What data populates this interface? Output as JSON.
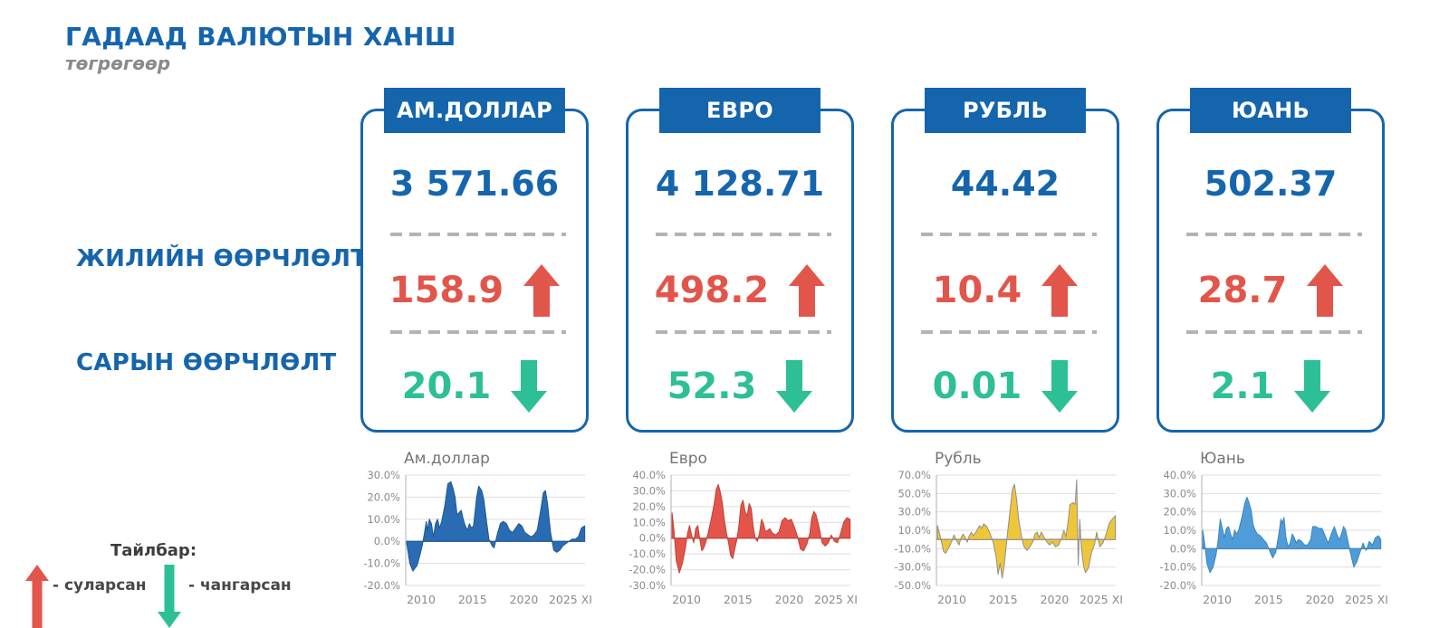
{
  "page": {
    "title": "ГАДААД ВАЛЮТЫН ХАНШ",
    "subtitle": "төгрөгөөр"
  },
  "row_labels": {
    "yearly": "ЖИЛИЙН ӨӨРЧЛӨЛТ",
    "monthly": "САРЫН ӨӨРЧЛӨЛТ"
  },
  "legend": {
    "title": "Тайлбар:",
    "weakened": "- суларсан",
    "strengthened": "- чангарсан"
  },
  "colors": {
    "blue": "#1565ad",
    "red": "#e2554b",
    "green": "#2dbf96",
    "dash_gray": "#b3b3b3"
  },
  "cards": [
    {
      "title": "АМ.ДОЛЛАР",
      "rate": "3 571.66",
      "yearly_change": "158.9",
      "monthly_change": "20.1"
    },
    {
      "title": "ЕВРО",
      "rate": "4 128.71",
      "yearly_change": "498.2",
      "monthly_change": "52.3"
    },
    {
      "title": "РУБЛЬ",
      "rate": "44.42",
      "yearly_change": "10.4",
      "monthly_change": "0.01"
    },
    {
      "title": "ЮАНЬ",
      "rate": "502.37",
      "yearly_change": "28.7",
      "monthly_change": "2.1"
    }
  ],
  "chart_data": [
    {
      "type": "area",
      "title": "Ам.доллар",
      "color": "#2a6cb3",
      "stroke": "#1d578f",
      "ylabel_format": "percent",
      "ylim": [
        -20,
        30
      ],
      "yticks": [
        30,
        20,
        10,
        0,
        -10,
        -20
      ],
      "xlim": [
        2008.5,
        2025.95
      ],
      "xticks": [
        {
          "v": 2010,
          "label": "2010"
        },
        {
          "v": 2015,
          "label": "2015"
        },
        {
          "v": 2020,
          "label": "2020"
        },
        {
          "v": 2025,
          "label": "2025 XI"
        }
      ],
      "points": [
        [
          2008.6,
          -1
        ],
        [
          2008.9,
          -10
        ],
        [
          2009.2,
          -13.5
        ],
        [
          2009.6,
          -11
        ],
        [
          2009.9,
          -6
        ],
        [
          2010.1,
          -2
        ],
        [
          2010.3,
          3
        ],
        [
          2010.5,
          9
        ],
        [
          2010.6,
          5
        ],
        [
          2010.8,
          10
        ],
        [
          2011.0,
          8
        ],
        [
          2011.2,
          2
        ],
        [
          2011.4,
          8
        ],
        [
          2011.6,
          10
        ],
        [
          2011.8,
          6
        ],
        [
          2012.0,
          9
        ],
        [
          2012.3,
          16
        ],
        [
          2012.6,
          26
        ],
        [
          2012.9,
          27
        ],
        [
          2013.1,
          24
        ],
        [
          2013.3,
          20
        ],
        [
          2013.5,
          12
        ],
        [
          2013.7,
          13
        ],
        [
          2013.9,
          14
        ],
        [
          2014.1,
          10
        ],
        [
          2014.3,
          7
        ],
        [
          2014.5,
          5
        ],
        [
          2014.7,
          8
        ],
        [
          2014.9,
          6
        ],
        [
          2015.1,
          7
        ],
        [
          2015.4,
          20
        ],
        [
          2015.6,
          25
        ],
        [
          2015.9,
          23
        ],
        [
          2016.1,
          19
        ],
        [
          2016.4,
          8
        ],
        [
          2016.6,
          1
        ],
        [
          2016.9,
          -2
        ],
        [
          2017.1,
          -3
        ],
        [
          2017.4,
          3
        ],
        [
          2017.7,
          8
        ],
        [
          2018.0,
          9
        ],
        [
          2018.3,
          8
        ],
        [
          2018.6,
          5
        ],
        [
          2018.9,
          4
        ],
        [
          2019.2,
          6
        ],
        [
          2019.5,
          8
        ],
        [
          2019.8,
          7
        ],
        [
          2020.1,
          4
        ],
        [
          2020.4,
          3
        ],
        [
          2020.7,
          2
        ],
        [
          2021.0,
          3
        ],
        [
          2021.3,
          5
        ],
        [
          2021.6,
          13
        ],
        [
          2021.9,
          22
        ],
        [
          2022.1,
          23
        ],
        [
          2022.3,
          17
        ],
        [
          2022.6,
          4
        ],
        [
          2022.9,
          -4
        ],
        [
          2023.2,
          -5
        ],
        [
          2023.5,
          -4
        ],
        [
          2023.8,
          -2
        ],
        [
          2024.1,
          -1
        ],
        [
          2024.4,
          0
        ],
        [
          2024.7,
          1
        ],
        [
          2025.0,
          1
        ],
        [
          2025.3,
          2
        ],
        [
          2025.6,
          6
        ],
        [
          2025.92,
          7
        ]
      ]
    },
    {
      "type": "area",
      "title": "Евро",
      "color": "#e3554b",
      "stroke": "#c04138",
      "ylabel_format": "percent",
      "ylim": [
        -30,
        40
      ],
      "yticks": [
        40,
        30,
        20,
        10,
        0,
        -10,
        -20,
        -30
      ],
      "xlim": [
        2008.5,
        2025.95
      ],
      "xticks": [
        {
          "v": 2010,
          "label": "2010"
        },
        {
          "v": 2015,
          "label": "2015"
        },
        {
          "v": 2020,
          "label": "2020"
        },
        {
          "v": 2025,
          "label": "2025 XI"
        }
      ],
      "points": [
        [
          2008.6,
          16
        ],
        [
          2008.8,
          4
        ],
        [
          2009.0,
          -14
        ],
        [
          2009.3,
          -22
        ],
        [
          2009.6,
          -16
        ],
        [
          2009.9,
          -6
        ],
        [
          2010.1,
          3
        ],
        [
          2010.3,
          8
        ],
        [
          2010.5,
          2
        ],
        [
          2010.7,
          -3
        ],
        [
          2010.9,
          6
        ],
        [
          2011.1,
          8
        ],
        [
          2011.3,
          -1
        ],
        [
          2011.5,
          -8
        ],
        [
          2011.7,
          -6
        ],
        [
          2011.9,
          -2
        ],
        [
          2012.1,
          3
        ],
        [
          2012.4,
          12
        ],
        [
          2012.7,
          22
        ],
        [
          2012.9,
          31
        ],
        [
          2013.1,
          34
        ],
        [
          2013.3,
          29
        ],
        [
          2013.5,
          22
        ],
        [
          2013.7,
          11
        ],
        [
          2013.9,
          3
        ],
        [
          2014.1,
          -3
        ],
        [
          2014.3,
          -11
        ],
        [
          2014.5,
          -13
        ],
        [
          2014.7,
          -7
        ],
        [
          2014.9,
          -1
        ],
        [
          2015.1,
          8
        ],
        [
          2015.3,
          21
        ],
        [
          2015.5,
          24
        ],
        [
          2015.7,
          17
        ],
        [
          2015.9,
          14
        ],
        [
          2016.1,
          22
        ],
        [
          2016.3,
          19
        ],
        [
          2016.5,
          7
        ],
        [
          2016.7,
          0
        ],
        [
          2016.9,
          -2
        ],
        [
          2017.1,
          3
        ],
        [
          2017.3,
          12
        ],
        [
          2017.5,
          9
        ],
        [
          2017.7,
          4
        ],
        [
          2017.9,
          5
        ],
        [
          2018.1,
          6
        ],
        [
          2018.4,
          3
        ],
        [
          2018.7,
          2
        ],
        [
          2019.0,
          4
        ],
        [
          2019.3,
          11
        ],
        [
          2019.6,
          13
        ],
        [
          2019.9,
          11
        ],
        [
          2020.2,
          12
        ],
        [
          2020.5,
          7
        ],
        [
          2020.8,
          1
        ],
        [
          2021.1,
          -7
        ],
        [
          2021.4,
          -8
        ],
        [
          2021.7,
          -4
        ],
        [
          2022.0,
          3
        ],
        [
          2022.2,
          13
        ],
        [
          2022.4,
          17
        ],
        [
          2022.6,
          15
        ],
        [
          2022.9,
          7
        ],
        [
          2023.2,
          -3
        ],
        [
          2023.5,
          -5
        ],
        [
          2023.8,
          -3
        ],
        [
          2024.1,
          2
        ],
        [
          2024.4,
          -2
        ],
        [
          2024.7,
          -3
        ],
        [
          2025.0,
          3
        ],
        [
          2025.3,
          10
        ],
        [
          2025.6,
          13
        ],
        [
          2025.92,
          12
        ]
      ]
    },
    {
      "type": "area",
      "title": "Рубль",
      "color": "#eec63a",
      "stroke": "#8f8f8f",
      "ylabel_format": "percent",
      "ylim": [
        -50,
        70
      ],
      "yticks": [
        70,
        50,
        30,
        10,
        -10,
        -30,
        -50
      ],
      "xlim": [
        2008.5,
        2025.95
      ],
      "xticks": [
        {
          "v": 2010,
          "label": "2010"
        },
        {
          "v": 2015,
          "label": "2015"
        },
        {
          "v": 2020,
          "label": "2020"
        },
        {
          "v": 2025,
          "label": "2025 XI"
        }
      ],
      "points": [
        [
          2008.6,
          15
        ],
        [
          2008.9,
          2
        ],
        [
          2009.2,
          -13
        ],
        [
          2009.4,
          -15
        ],
        [
          2009.7,
          -9
        ],
        [
          2010.0,
          -2
        ],
        [
          2010.2,
          5
        ],
        [
          2010.5,
          -2
        ],
        [
          2010.7,
          -6
        ],
        [
          2010.9,
          2
        ],
        [
          2011.1,
          6
        ],
        [
          2011.3,
          2
        ],
        [
          2011.5,
          -3
        ],
        [
          2011.7,
          4
        ],
        [
          2011.9,
          8
        ],
        [
          2012.1,
          4
        ],
        [
          2012.4,
          9
        ],
        [
          2012.7,
          15
        ],
        [
          2012.9,
          12
        ],
        [
          2013.1,
          17
        ],
        [
          2013.4,
          14
        ],
        [
          2013.7,
          7
        ],
        [
          2014.0,
          -2
        ],
        [
          2014.3,
          -18
        ],
        [
          2014.5,
          -38
        ],
        [
          2014.7,
          -26
        ],
        [
          2014.9,
          -42
        ],
        [
          2015.1,
          -28
        ],
        [
          2015.4,
          5
        ],
        [
          2015.7,
          35
        ],
        [
          2015.9,
          55
        ],
        [
          2016.1,
          60
        ],
        [
          2016.3,
          44
        ],
        [
          2016.5,
          22
        ],
        [
          2016.8,
          2
        ],
        [
          2017.0,
          -7
        ],
        [
          2017.3,
          -12
        ],
        [
          2017.6,
          -8
        ],
        [
          2017.9,
          -2
        ],
        [
          2018.1,
          6
        ],
        [
          2018.3,
          8
        ],
        [
          2018.5,
          2
        ],
        [
          2018.7,
          8
        ],
        [
          2018.9,
          4
        ],
        [
          2019.2,
          -2
        ],
        [
          2019.5,
          -6
        ],
        [
          2019.8,
          -3
        ],
        [
          2020.1,
          -8
        ],
        [
          2020.4,
          -6
        ],
        [
          2020.7,
          2
        ],
        [
          2020.9,
          10
        ],
        [
          2021.1,
          3
        ],
        [
          2021.3,
          18
        ],
        [
          2021.5,
          38
        ],
        [
          2021.8,
          40
        ],
        [
          2022.0,
          38
        ],
        [
          2022.15,
          65
        ],
        [
          2022.3,
          -28
        ],
        [
          2022.45,
          22
        ],
        [
          2022.6,
          -8
        ],
        [
          2022.8,
          -28
        ],
        [
          2023.0,
          -36
        ],
        [
          2023.3,
          -31
        ],
        [
          2023.6,
          -14
        ],
        [
          2023.9,
          -5
        ],
        [
          2024.1,
          8
        ],
        [
          2024.4,
          -8
        ],
        [
          2024.7,
          -4
        ],
        [
          2025.0,
          5
        ],
        [
          2025.3,
          17
        ],
        [
          2025.6,
          22
        ],
        [
          2025.92,
          26
        ]
      ]
    },
    {
      "type": "area",
      "title": "Юань",
      "color": "#4f9cd8",
      "stroke": "#3b85bd",
      "ylabel_format": "percent",
      "ylim": [
        -20,
        40
      ],
      "yticks": [
        40,
        30,
        20,
        10,
        0,
        -10,
        -20
      ],
      "xlim": [
        2008.5,
        2025.95
      ],
      "xticks": [
        {
          "v": 2010,
          "label": "2010"
        },
        {
          "v": 2015,
          "label": "2015"
        },
        {
          "v": 2020,
          "label": "2020"
        },
        {
          "v": 2025,
          "label": "2025 XI"
        }
      ],
      "points": [
        [
          2008.6,
          10
        ],
        [
          2008.8,
          2
        ],
        [
          2009.0,
          -8
        ],
        [
          2009.3,
          -13
        ],
        [
          2009.6,
          -10
        ],
        [
          2009.9,
          -3
        ],
        [
          2010.1,
          5
        ],
        [
          2010.3,
          16
        ],
        [
          2010.5,
          11
        ],
        [
          2010.7,
          6
        ],
        [
          2010.9,
          11
        ],
        [
          2011.1,
          12
        ],
        [
          2011.3,
          8
        ],
        [
          2011.5,
          5
        ],
        [
          2011.7,
          10
        ],
        [
          2011.9,
          8
        ],
        [
          2012.1,
          10
        ],
        [
          2012.4,
          17
        ],
        [
          2012.7,
          25
        ],
        [
          2012.9,
          28
        ],
        [
          2013.1,
          25
        ],
        [
          2013.3,
          21
        ],
        [
          2013.5,
          13
        ],
        [
          2013.7,
          10
        ],
        [
          2013.9,
          8
        ],
        [
          2014.2,
          7
        ],
        [
          2014.5,
          5
        ],
        [
          2014.8,
          3
        ],
        [
          2015.1,
          -1
        ],
        [
          2015.4,
          -5
        ],
        [
          2015.7,
          -2
        ],
        [
          2016.0,
          8
        ],
        [
          2016.2,
          16
        ],
        [
          2016.35,
          14
        ],
        [
          2016.5,
          17
        ],
        [
          2016.7,
          6
        ],
        [
          2016.9,
          1
        ],
        [
          2017.1,
          3
        ],
        [
          2017.3,
          8
        ],
        [
          2017.5,
          6
        ],
        [
          2017.7,
          3
        ],
        [
          2017.9,
          5
        ],
        [
          2018.2,
          4
        ],
        [
          2018.5,
          2
        ],
        [
          2018.8,
          2
        ],
        [
          2019.1,
          5
        ],
        [
          2019.3,
          12
        ],
        [
          2019.6,
          12
        ],
        [
          2019.9,
          11
        ],
        [
          2020.2,
          11
        ],
        [
          2020.5,
          7
        ],
        [
          2020.8,
          3
        ],
        [
          2021.1,
          8
        ],
        [
          2021.4,
          12
        ],
        [
          2021.7,
          7
        ],
        [
          2021.9,
          5
        ],
        [
          2022.1,
          8
        ],
        [
          2022.3,
          12
        ],
        [
          2022.5,
          10
        ],
        [
          2022.8,
          2
        ],
        [
          2023.0,
          -3
        ],
        [
          2023.3,
          -10
        ],
        [
          2023.6,
          -7
        ],
        [
          2023.9,
          -2
        ],
        [
          2024.2,
          3
        ],
        [
          2024.5,
          -1
        ],
        [
          2024.8,
          4
        ],
        [
          2025.1,
          2
        ],
        [
          2025.4,
          6
        ],
        [
          2025.7,
          7
        ],
        [
          2025.92,
          5
        ]
      ]
    }
  ]
}
